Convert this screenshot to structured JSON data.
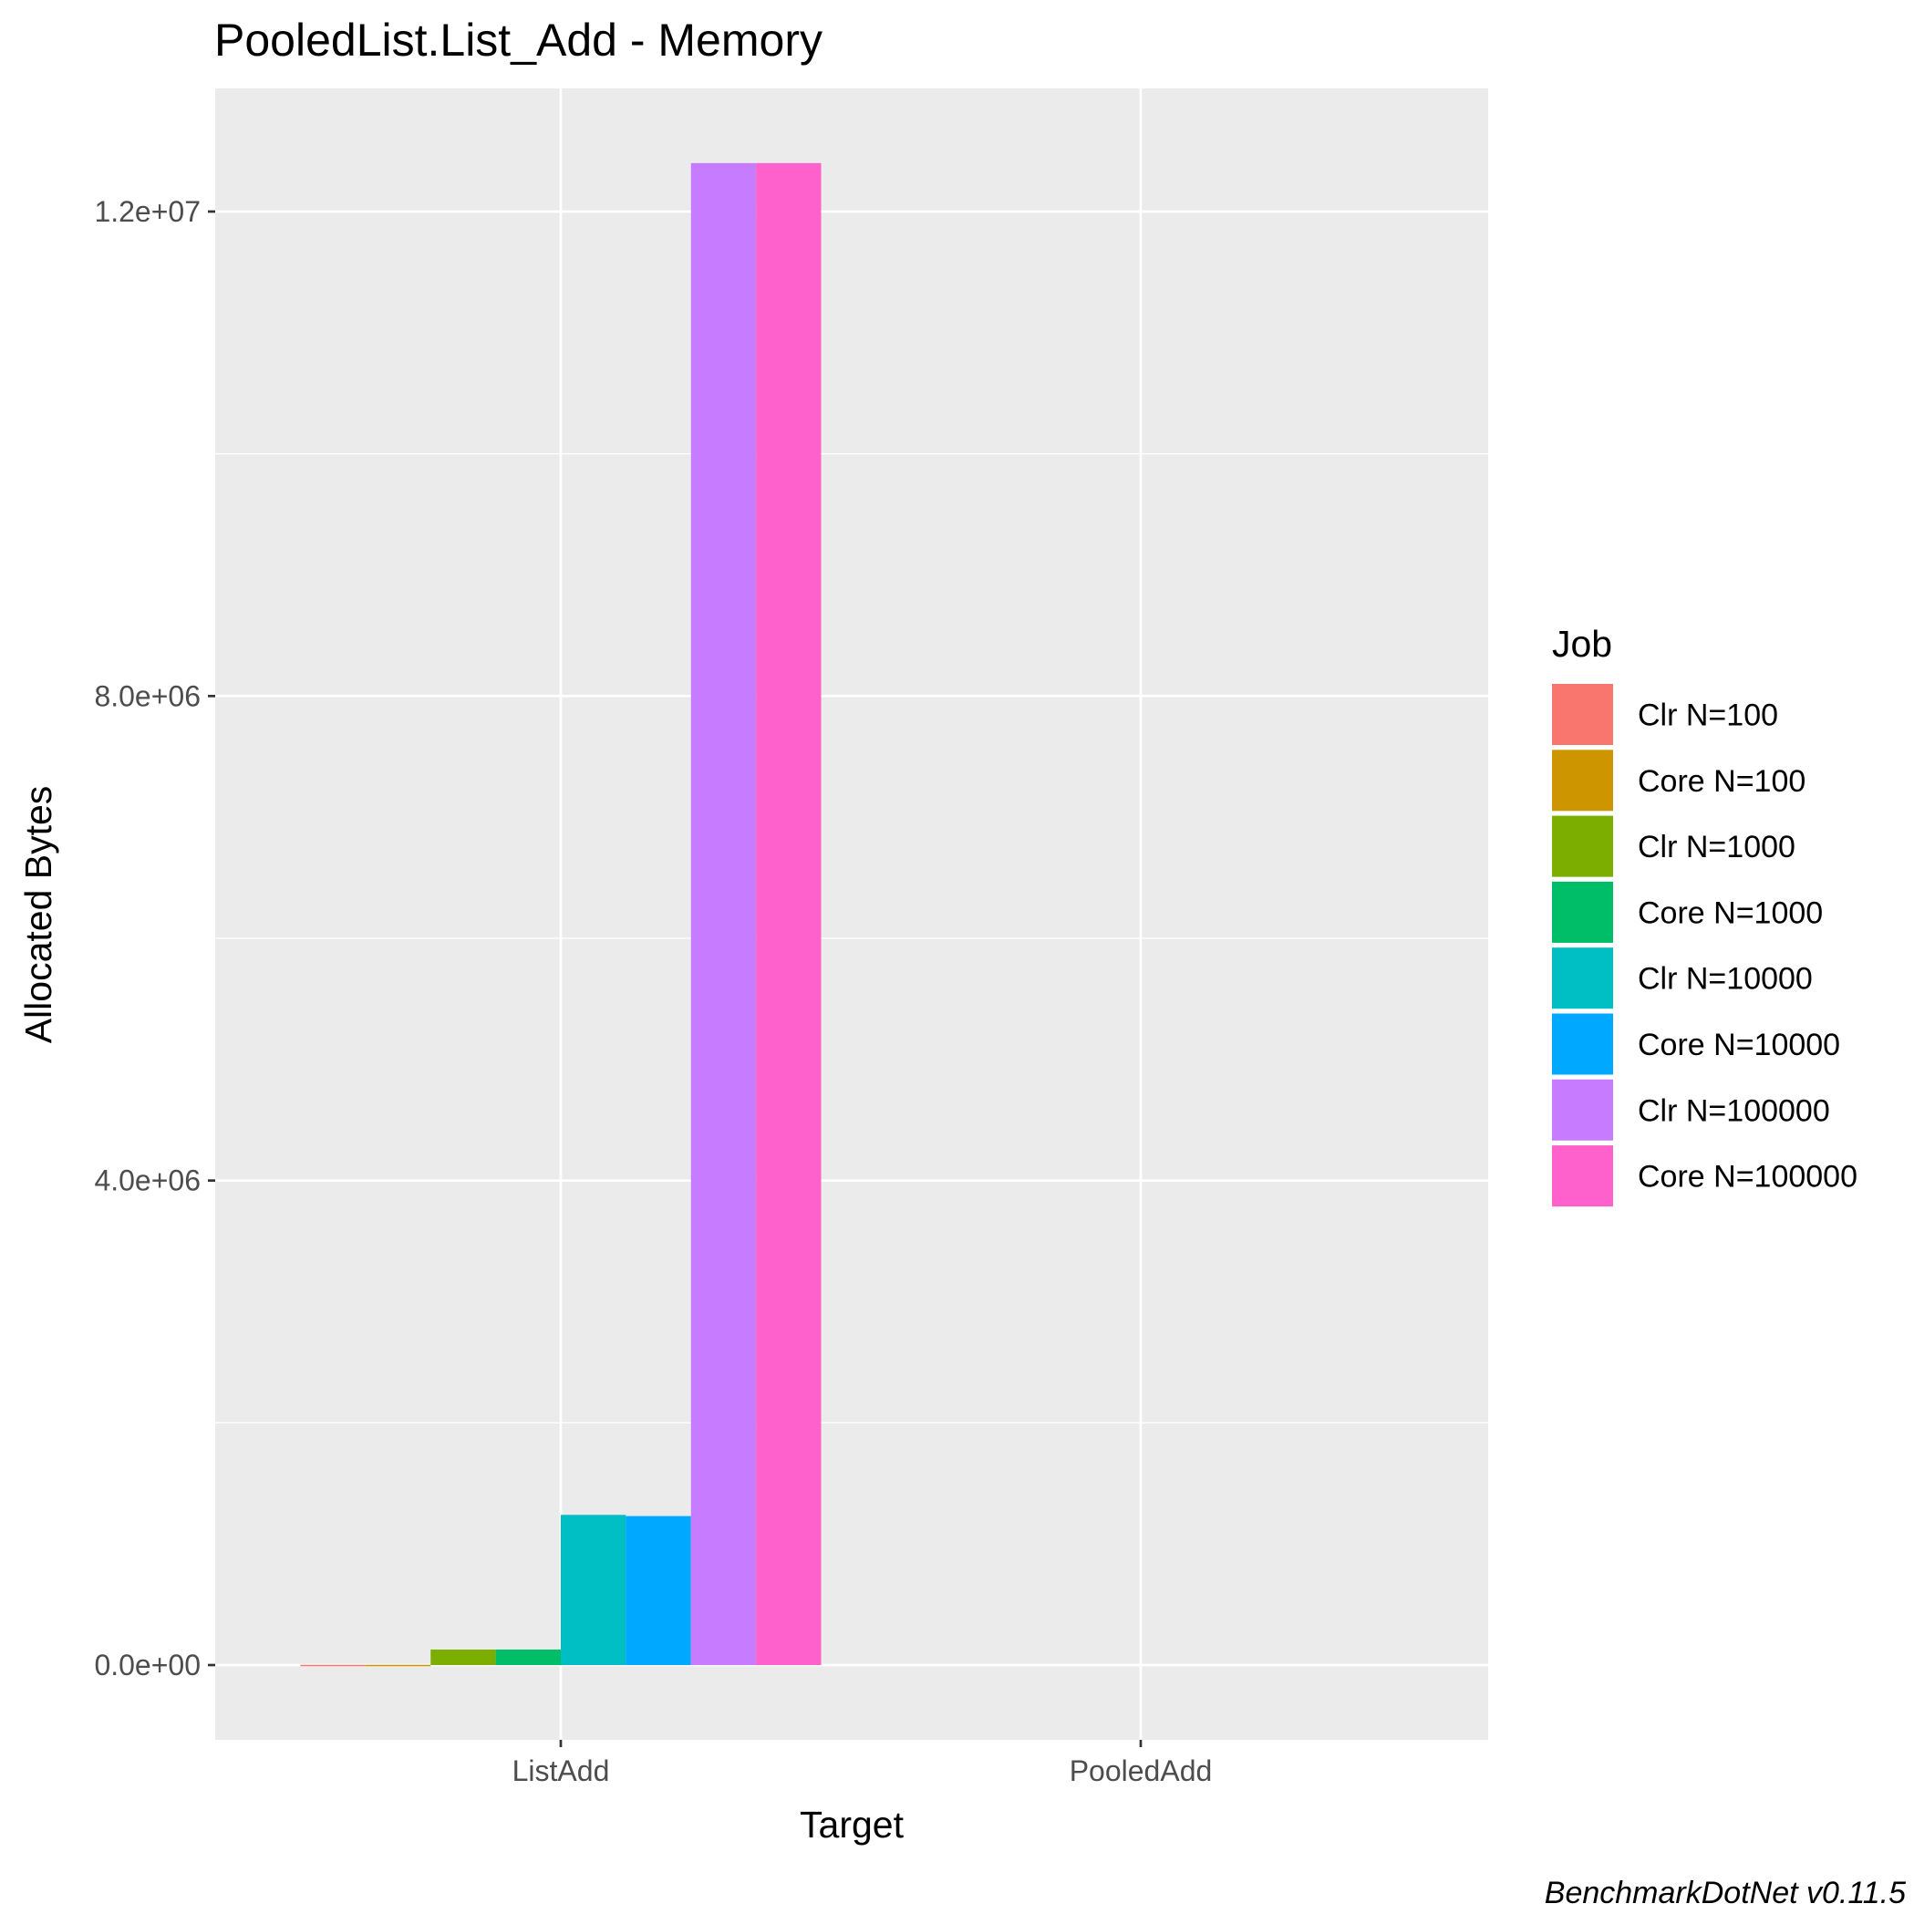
{
  "chart_data": {
    "type": "bar",
    "title": "PooledList.List_Add - Memory",
    "xlabel": "Target",
    "ylabel": "Allocated  Bytes",
    "caption": "BenchmarkDotNet v0.11.5",
    "categories": [
      "ListAdd",
      "PooledAdd"
    ],
    "y_ticks": [
      {
        "value": 0,
        "label": "0.0e+00"
      },
      {
        "value": 4000000,
        "label": "4.0e+06"
      },
      {
        "value": 8000000,
        "label": "8.0e+06"
      },
      {
        "value": 12000000,
        "label": "1.2e+07"
      }
    ],
    "ylim": [
      -620000,
      13000000
    ],
    "grid": true,
    "legend": {
      "title": "Job",
      "position": "right"
    },
    "series": [
      {
        "name": "Clr N=100",
        "color": "#F8766D",
        "values": [
          2000,
          0
        ]
      },
      {
        "name": "Core N=100",
        "color": "#CD9600",
        "values": [
          2000,
          0
        ]
      },
      {
        "name": "Clr N=1000",
        "color": "#7CAE00",
        "values": [
          128000,
          0
        ]
      },
      {
        "name": "Core N=1000",
        "color": "#00BE67",
        "values": [
          128000,
          0
        ]
      },
      {
        "name": "Clr N=10000",
        "color": "#00BFC4",
        "values": [
          1240000,
          0
        ]
      },
      {
        "name": "Core N=10000",
        "color": "#00A9FF",
        "values": [
          1230000,
          0
        ]
      },
      {
        "name": "Clr N=100000",
        "color": "#C77CFF",
        "values": [
          12400000,
          0
        ]
      },
      {
        "name": "Core N=100000",
        "color": "#FF61CC",
        "values": [
          12400000,
          0
        ]
      }
    ]
  }
}
